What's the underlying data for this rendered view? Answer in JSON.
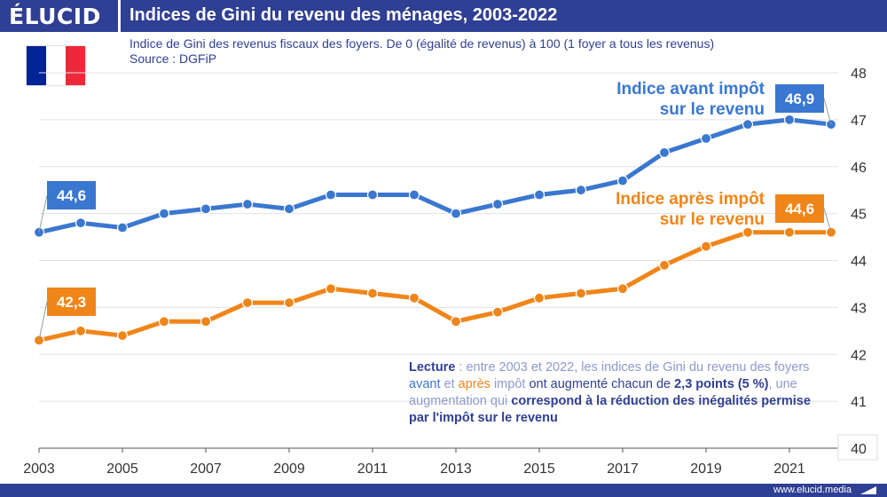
{
  "header": {
    "brand": "ÉLUCID",
    "title": "Indices de Gini du revenu des ménages, 2003-2022"
  },
  "subtitle": "Indice de Gini des revenus fiscaux des foyers. De 0 (égalité de revenus) à 100 (1 foyer a tous les revenus)",
  "source": "Source : DGFiP",
  "flag": {
    "colors": [
      "#002395",
      "#ffffff",
      "#ed2939"
    ]
  },
  "footer": {
    "url": "www.elucid.media"
  },
  "colors": {
    "brand": "#2f3f94",
    "before_tax": "#3a77d0",
    "after_tax": "#f08519",
    "muted": "#8e99cc"
  },
  "chart_data": {
    "type": "line",
    "x": [
      2003,
      2004,
      2005,
      2006,
      2007,
      2008,
      2009,
      2010,
      2011,
      2012,
      2013,
      2014,
      2015,
      2016,
      2017,
      2018,
      2019,
      2020,
      2021,
      2022
    ],
    "series": [
      {
        "name": "Indice avant impôt sur le revenu",
        "values": [
          44.6,
          44.8,
          44.7,
          45.0,
          45.1,
          45.2,
          45.1,
          45.4,
          45.4,
          45.4,
          45.0,
          45.2,
          45.4,
          45.5,
          45.7,
          46.3,
          46.6,
          46.9,
          47.0,
          46.9
        ]
      },
      {
        "name": "Indice après impôt sur le revenu",
        "values": [
          42.3,
          42.5,
          42.4,
          42.7,
          42.7,
          43.1,
          43.1,
          43.4,
          43.3,
          43.2,
          42.7,
          42.9,
          43.2,
          43.3,
          43.4,
          43.9,
          44.3,
          44.6,
          44.6,
          44.6
        ]
      }
    ],
    "ylim": [
      40,
      48
    ],
    "yticks": [
      "40",
      "41",
      "42",
      "43",
      "44",
      "45",
      "46",
      "47",
      "48"
    ],
    "xticks": [
      "2003",
      "2005",
      "2007",
      "2009",
      "2011",
      "2013",
      "2015",
      "2017",
      "2019",
      "2021"
    ],
    "series_labels": {
      "before": [
        "Indice avant impôt",
        "sur le revenu"
      ],
      "after": [
        "Indice après impôt",
        "sur le revenu"
      ]
    },
    "value_labels": {
      "before_start": "44,6",
      "before_end": "46,9",
      "after_start": "42,3",
      "after_end": "44,6"
    },
    "annotation": {
      "p1": "Lecture",
      "p2": " : entre 2003 et 2022, ",
      "p3": "les indices de Gini du revenu des foyers ",
      "p4": "avant",
      "p5": " et ",
      "p6": "après",
      "p7": " impôt",
      "p8": " ont augmenté chacun de ",
      "p9": "2,3 points (5 %)",
      "p10": ", une augmentation qui ",
      "p11": "correspond à la réduction des inégalités permise par l'impôt sur le revenu"
    }
  }
}
